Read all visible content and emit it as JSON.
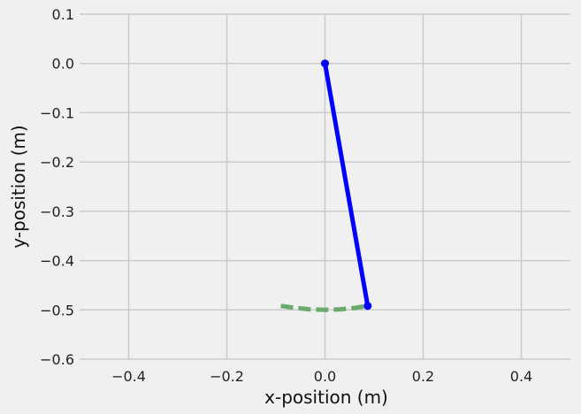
{
  "chart_data": {
    "type": "line",
    "title": "",
    "xlabel": "x-position (m)",
    "ylabel": "y-position (m)",
    "xlim": [
      -0.5,
      0.5
    ],
    "ylim": [
      -0.6,
      0.1
    ],
    "xticks": [
      -0.4,
      -0.2,
      0.0,
      0.2,
      0.4
    ],
    "xtick_labels": [
      "−0.4",
      "−0.2",
      "0.0",
      "0.2",
      "0.4"
    ],
    "yticks": [
      0.1,
      0.0,
      -0.1,
      -0.2,
      -0.3,
      -0.4,
      -0.5,
      -0.6
    ],
    "ytick_labels": [
      "0.1",
      "0.0",
      "−0.1",
      "−0.2",
      "−0.3",
      "−0.4",
      "−0.5",
      "−0.6"
    ],
    "grid": true,
    "series": [
      {
        "style": "solid",
        "color": "#0000ff",
        "markers": true,
        "x": [
          0.0,
          0.087
        ],
        "y": [
          0.0,
          -0.492
        ]
      },
      {
        "style": "dashed",
        "color": "#6aaa6a",
        "markers": false,
        "x": [
          -0.09,
          -0.06,
          -0.03,
          0.0,
          0.03,
          0.06,
          0.087
        ],
        "y": [
          -0.492,
          -0.496,
          -0.499,
          -0.5,
          -0.499,
          -0.496,
          -0.492
        ]
      }
    ]
  }
}
